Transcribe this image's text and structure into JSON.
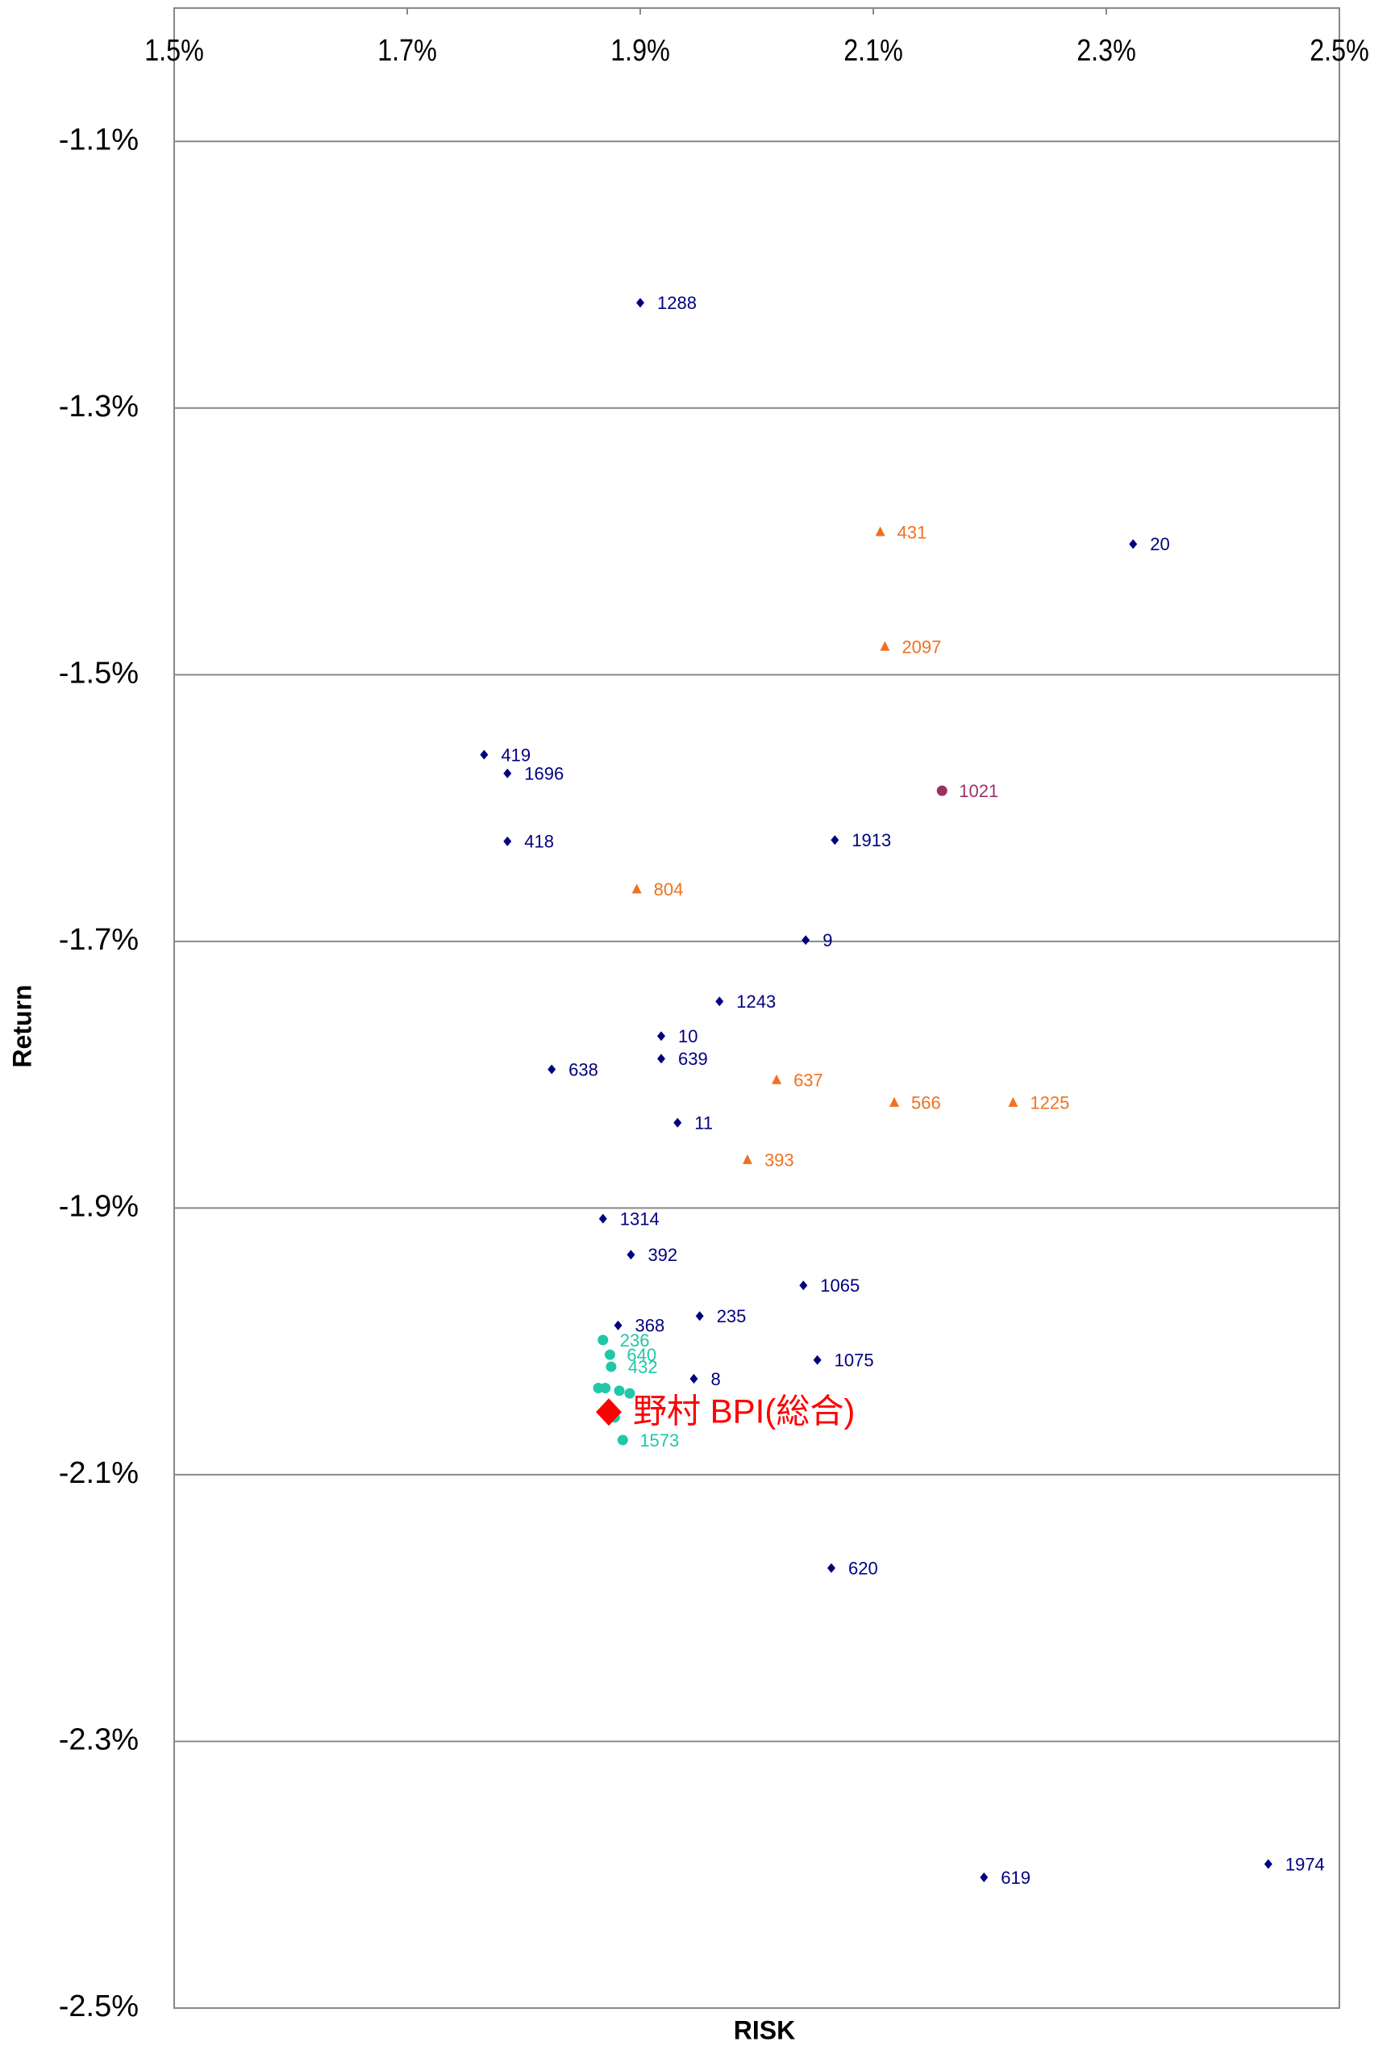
{
  "chart_data": {
    "type": "scatter",
    "x_label": "RISK",
    "y_label": "Return",
    "xlim": [
      1.5,
      2.5
    ],
    "xticks": [
      {
        "value": 1.5,
        "label": "1.5%"
      },
      {
        "value": 1.7,
        "label": "1.7%"
      },
      {
        "value": 1.9,
        "label": "1.9%"
      },
      {
        "value": 2.1,
        "label": "2.1%"
      },
      {
        "value": 2.3,
        "label": "2.3%"
      },
      {
        "value": 2.5,
        "label": "2.5%"
      }
    ],
    "ylim": [
      -2.5,
      -1.0
    ],
    "yticks": [
      {
        "value": -1.1,
        "label": "-1.1%"
      },
      {
        "value": -1.3,
        "label": "-1.3%"
      },
      {
        "value": -1.5,
        "label": "-1.5%"
      },
      {
        "value": -1.7,
        "label": "-1.7%"
      },
      {
        "value": -1.9,
        "label": "-1.9%"
      },
      {
        "value": -2.1,
        "label": "-2.1%"
      },
      {
        "value": -2.3,
        "label": "-2.3%"
      },
      {
        "value": -2.5,
        "label": "-2.5%"
      }
    ],
    "grid": true,
    "series": [
      {
        "color": "#000080",
        "marker": "diamond",
        "labels": [
          "1288",
          "20",
          "419",
          "1696",
          "418",
          "1913",
          "9",
          "1243",
          "10",
          "639",
          "638",
          "11",
          "1314",
          "392",
          "1065",
          "235",
          "368",
          "1075",
          "8",
          "620",
          "619",
          "1974"
        ],
        "x": [
          1.9,
          2.323,
          1.766,
          1.786,
          1.786,
          2.067,
          2.042,
          1.968,
          1.918,
          1.918,
          1.824,
          1.932,
          1.868,
          1.892,
          2.04,
          1.951,
          1.881,
          2.052,
          1.946,
          2.064,
          2.195,
          2.439
        ],
        "values": [
          -1.221,
          -1.402,
          -1.56,
          -1.574,
          -1.625,
          -1.624,
          -1.699,
          -1.745,
          -1.771,
          -1.788,
          -1.796,
          -1.836,
          -1.908,
          -1.935,
          -1.958,
          -1.981,
          -1.988,
          -2.014,
          -2.028,
          -2.17,
          -2.402,
          -2.392
        ]
      },
      {
        "color": "#f07020",
        "marker": "triangle",
        "labels": [
          "431",
          "2097",
          "804",
          "637",
          "566",
          "1225",
          "393"
        ],
        "x": [
          2.106,
          2.11,
          1.897,
          2.017,
          2.118,
          2.22,
          1.992
        ],
        "values": [
          -1.393,
          -1.479,
          -1.661,
          -1.804,
          -1.821,
          -1.821,
          -1.864
        ]
      },
      {
        "color": "#993366",
        "marker": "circle",
        "labels": [
          "1021"
        ],
        "x": [
          2.159
        ],
        "values": [
          -1.587
        ]
      },
      {
        "color": "#1ec8a8",
        "marker": "circle",
        "labels": [
          "236",
          "640",
          "432",
          null,
          null,
          null,
          null,
          null,
          "1573"
        ],
        "x": [
          1.868,
          1.874,
          1.875,
          1.864,
          1.87,
          1.882,
          1.891,
          1.878,
          1.885
        ],
        "values": [
          -1.999,
          -2.01,
          -2.019,
          -2.035,
          -2.035,
          -2.037,
          -2.039,
          -2.057,
          -2.074
        ]
      },
      {
        "color": "#ff0000",
        "marker": "big-diamond",
        "labels": [
          "野村 BPI(総合)"
        ],
        "x": [
          1.873
        ],
        "values": [
          -2.053
        ]
      }
    ]
  }
}
